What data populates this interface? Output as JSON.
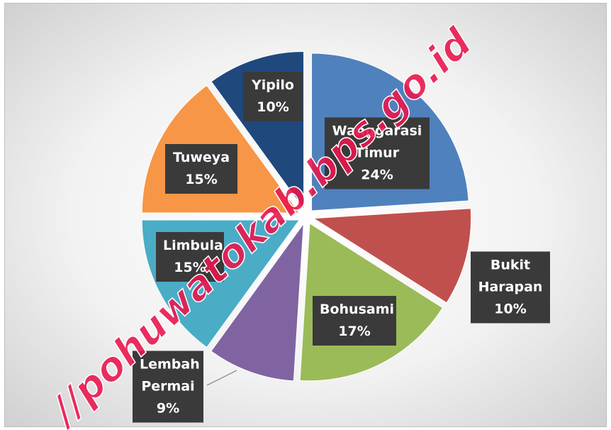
{
  "chart_data": {
    "type": "pie",
    "categories": [
      "Wanggarasi Timur",
      "Bukit Harapan",
      "Bohusami",
      "Lembah Permai",
      "Limbula",
      "Tuweya",
      "Yipilo"
    ],
    "values": [
      24,
      10,
      17,
      9,
      15,
      15,
      10
    ],
    "value_labels": [
      "24%",
      "10%",
      "17%",
      "9%",
      "15%",
      "15%",
      "10%"
    ],
    "colors": [
      "#4f81bd",
      "#c0504d",
      "#9bbb59",
      "#8064a2",
      "#4bacc6",
      "#f79646",
      "#1f497d"
    ],
    "watermark": "//pohuwatokab.bps.go.id"
  }
}
